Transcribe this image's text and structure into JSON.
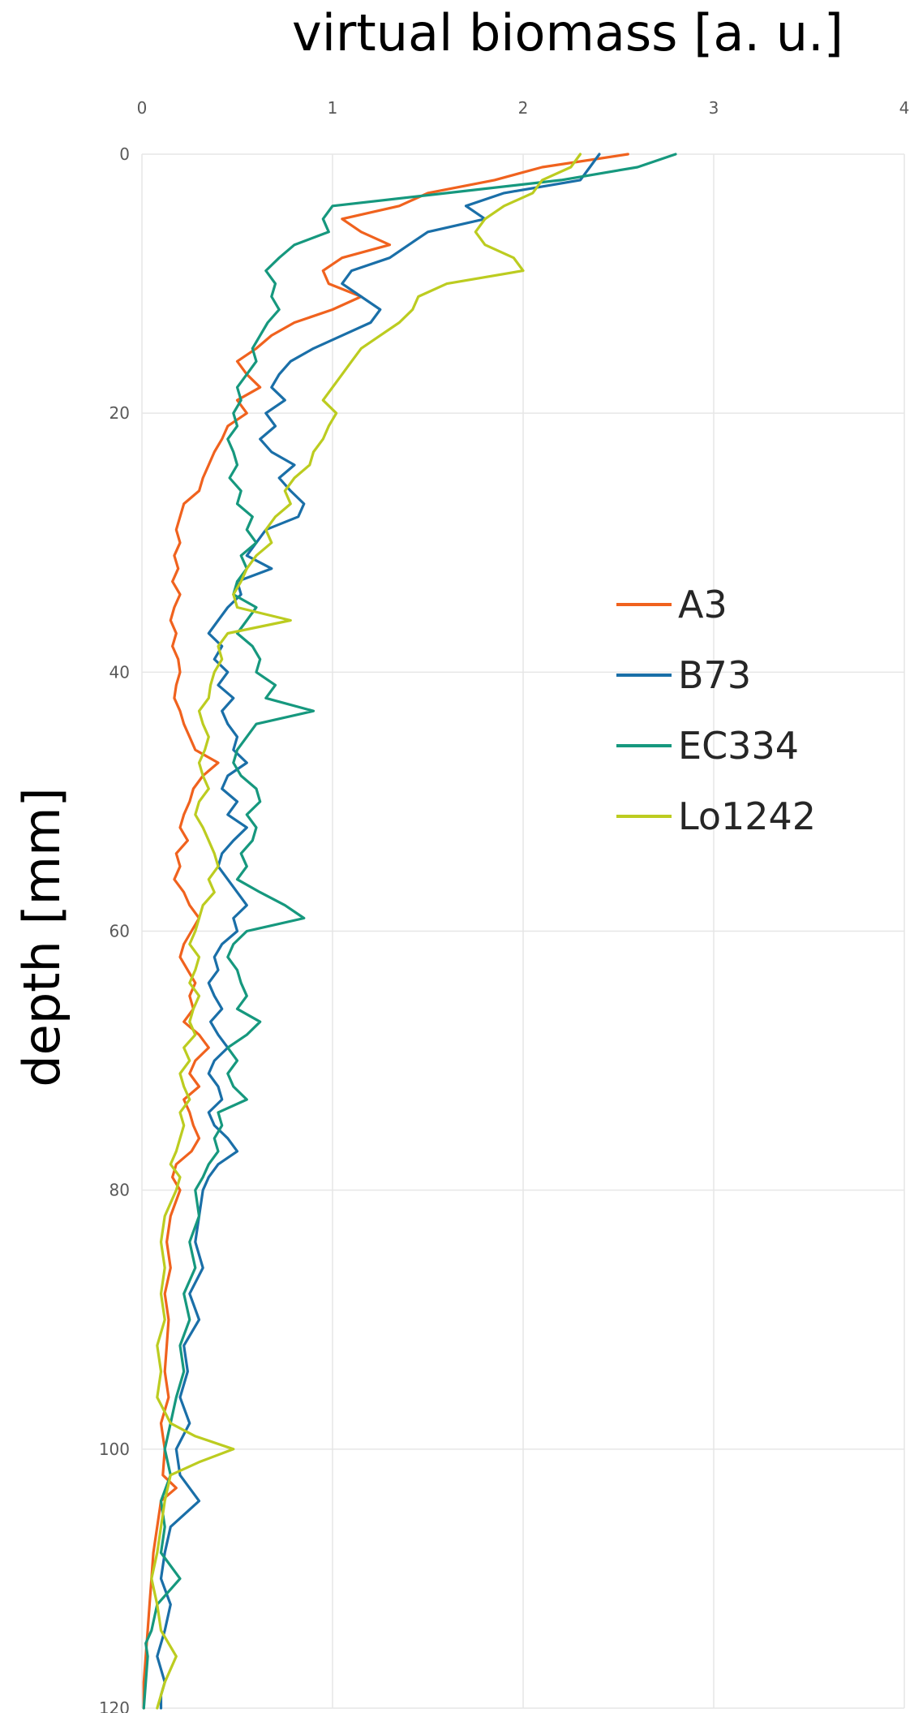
{
  "chart_data": {
    "type": "line",
    "orientation": "depth-profile",
    "xlabel": "virtual biomass [a. u.]",
    "ylabel": "depth [mm]",
    "xlim": [
      0,
      4
    ],
    "ylim": [
      0,
      120
    ],
    "y_inverted": true,
    "x_axis_position": "top",
    "xticks": [
      "0",
      "1",
      "2",
      "3",
      "4"
    ],
    "yticks": [
      "0",
      "20",
      "40",
      "60",
      "80",
      "100",
      "120"
    ],
    "grid": true,
    "legend_position": "right",
    "series": [
      {
        "name": "A3",
        "color": "#f0621e",
        "depth": [
          0,
          1,
          2,
          3,
          4,
          5,
          6,
          7,
          8,
          9,
          10,
          11,
          12,
          13,
          14,
          15,
          16,
          17,
          18,
          19,
          20,
          21,
          22,
          23,
          24,
          25,
          26,
          27,
          28,
          29,
          30,
          31,
          32,
          33,
          34,
          35,
          36,
          37,
          38,
          39,
          40,
          41,
          42,
          43,
          44,
          45,
          46,
          47,
          48,
          49,
          50,
          51,
          52,
          53,
          54,
          55,
          56,
          57,
          58,
          59,
          60,
          61,
          62,
          63,
          64,
          65,
          66,
          67,
          68,
          69,
          70,
          71,
          72,
          73,
          74,
          75,
          76,
          77,
          78,
          79,
          80,
          82,
          84,
          86,
          88,
          90,
          92,
          94,
          96,
          98,
          100,
          102,
          103,
          104,
          106,
          108,
          110,
          112,
          114,
          116,
          118,
          120
        ],
        "values": [
          2.55,
          2.1,
          1.85,
          1.5,
          1.35,
          1.05,
          1.15,
          1.3,
          1.05,
          0.95,
          0.98,
          1.15,
          1.0,
          0.8,
          0.68,
          0.6,
          0.5,
          0.55,
          0.62,
          0.5,
          0.55,
          0.45,
          0.42,
          0.38,
          0.35,
          0.32,
          0.3,
          0.22,
          0.2,
          0.18,
          0.2,
          0.17,
          0.19,
          0.16,
          0.2,
          0.17,
          0.15,
          0.18,
          0.16,
          0.19,
          0.2,
          0.18,
          0.17,
          0.2,
          0.22,
          0.25,
          0.28,
          0.4,
          0.32,
          0.27,
          0.25,
          0.22,
          0.2,
          0.24,
          0.18,
          0.2,
          0.17,
          0.22,
          0.25,
          0.3,
          0.26,
          0.22,
          0.2,
          0.24,
          0.28,
          0.25,
          0.27,
          0.22,
          0.3,
          0.35,
          0.28,
          0.25,
          0.3,
          0.22,
          0.25,
          0.27,
          0.3,
          0.26,
          0.18,
          0.16,
          0.2,
          0.15,
          0.13,
          0.15,
          0.12,
          0.14,
          0.13,
          0.12,
          0.14,
          0.1,
          0.12,
          0.11,
          0.18,
          0.1,
          0.08,
          0.06,
          0.05,
          0.04,
          0.03,
          0.02,
          0.01,
          0.01
        ]
      },
      {
        "name": "B73",
        "color": "#1a6fa8",
        "depth": [
          0,
          1,
          2,
          3,
          4,
          5,
          6,
          7,
          8,
          9,
          10,
          11,
          12,
          13,
          14,
          15,
          16,
          17,
          18,
          19,
          20,
          21,
          22,
          23,
          24,
          25,
          26,
          27,
          28,
          29,
          30,
          31,
          32,
          33,
          34,
          35,
          36,
          37,
          38,
          39,
          40,
          41,
          42,
          43,
          44,
          45,
          46,
          47,
          48,
          49,
          50,
          51,
          52,
          53,
          54,
          55,
          56,
          57,
          58,
          59,
          60,
          61,
          62,
          63,
          64,
          65,
          66,
          67,
          68,
          69,
          70,
          71,
          72,
          73,
          74,
          75,
          76,
          77,
          78,
          79,
          80,
          82,
          84,
          86,
          88,
          90,
          92,
          94,
          96,
          98,
          100,
          102,
          104,
          106,
          108,
          110,
          112,
          114,
          116,
          118,
          119,
          120
        ],
        "values": [
          2.4,
          2.35,
          2.3,
          1.9,
          1.7,
          1.8,
          1.5,
          1.4,
          1.3,
          1.1,
          1.05,
          1.15,
          1.25,
          1.2,
          1.05,
          0.9,
          0.78,
          0.72,
          0.68,
          0.75,
          0.65,
          0.7,
          0.62,
          0.68,
          0.8,
          0.72,
          0.78,
          0.85,
          0.82,
          0.65,
          0.6,
          0.55,
          0.68,
          0.5,
          0.52,
          0.45,
          0.4,
          0.35,
          0.42,
          0.38,
          0.45,
          0.4,
          0.48,
          0.42,
          0.45,
          0.5,
          0.48,
          0.55,
          0.45,
          0.42,
          0.5,
          0.45,
          0.55,
          0.48,
          0.42,
          0.4,
          0.45,
          0.5,
          0.55,
          0.48,
          0.5,
          0.42,
          0.38,
          0.4,
          0.35,
          0.38,
          0.42,
          0.36,
          0.4,
          0.45,
          0.38,
          0.35,
          0.4,
          0.42,
          0.35,
          0.38,
          0.45,
          0.5,
          0.4,
          0.35,
          0.32,
          0.3,
          0.28,
          0.32,
          0.25,
          0.3,
          0.22,
          0.24,
          0.2,
          0.25,
          0.18,
          0.2,
          0.3,
          0.15,
          0.12,
          0.1,
          0.15,
          0.12,
          0.08,
          0.12,
          0.1,
          0.1
        ]
      },
      {
        "name": "EC334",
        "color": "#16987e",
        "depth": [
          0,
          1,
          2,
          3,
          4,
          5,
          6,
          7,
          8,
          9,
          10,
          11,
          12,
          13,
          14,
          15,
          16,
          17,
          18,
          19,
          20,
          21,
          22,
          23,
          24,
          25,
          26,
          27,
          28,
          29,
          30,
          31,
          32,
          33,
          34,
          35,
          36,
          37,
          38,
          39,
          40,
          41,
          42,
          43,
          44,
          45,
          46,
          47,
          48,
          49,
          50,
          51,
          52,
          53,
          54,
          55,
          56,
          57,
          58,
          59,
          60,
          61,
          62,
          63,
          64,
          65,
          66,
          67,
          68,
          69,
          70,
          71,
          72,
          73,
          74,
          75,
          76,
          77,
          78,
          79,
          80,
          82,
          84,
          86,
          88,
          90,
          92,
          94,
          96,
          98,
          100,
          102,
          104,
          106,
          108,
          110,
          112,
          114,
          115,
          116,
          118,
          120
        ],
        "values": [
          2.8,
          2.6,
          2.2,
          1.6,
          1.0,
          0.95,
          0.98,
          0.8,
          0.72,
          0.65,
          0.7,
          0.68,
          0.72,
          0.66,
          0.62,
          0.58,
          0.6,
          0.55,
          0.5,
          0.52,
          0.48,
          0.5,
          0.45,
          0.48,
          0.5,
          0.46,
          0.52,
          0.5,
          0.58,
          0.55,
          0.6,
          0.52,
          0.55,
          0.5,
          0.48,
          0.6,
          0.55,
          0.5,
          0.58,
          0.62,
          0.6,
          0.7,
          0.65,
          0.9,
          0.6,
          0.55,
          0.5,
          0.48,
          0.52,
          0.6,
          0.62,
          0.55,
          0.6,
          0.58,
          0.52,
          0.55,
          0.5,
          0.62,
          0.75,
          0.85,
          0.55,
          0.48,
          0.45,
          0.5,
          0.52,
          0.55,
          0.5,
          0.62,
          0.55,
          0.45,
          0.5,
          0.45,
          0.48,
          0.55,
          0.4,
          0.42,
          0.38,
          0.4,
          0.35,
          0.32,
          0.28,
          0.3,
          0.25,
          0.28,
          0.22,
          0.25,
          0.2,
          0.22,
          0.18,
          0.15,
          0.12,
          0.15,
          0.1,
          0.12,
          0.1,
          0.2,
          0.08,
          0.05,
          0.02,
          0.03,
          0.02,
          0.01
        ]
      },
      {
        "name": "Lo1242",
        "color": "#bccc20",
        "depth": [
          0,
          1,
          2,
          3,
          4,
          5,
          6,
          7,
          8,
          9,
          10,
          11,
          12,
          13,
          14,
          15,
          16,
          17,
          18,
          19,
          20,
          21,
          22,
          23,
          24,
          25,
          26,
          27,
          28,
          29,
          30,
          31,
          32,
          33,
          34,
          35,
          36,
          37,
          38,
          39,
          40,
          41,
          42,
          43,
          44,
          45,
          46,
          47,
          48,
          49,
          50,
          51,
          52,
          53,
          54,
          55,
          56,
          57,
          58,
          59,
          60,
          61,
          62,
          63,
          64,
          65,
          66,
          67,
          68,
          69,
          70,
          71,
          72,
          73,
          74,
          75,
          76,
          77,
          78,
          79,
          80,
          82,
          84,
          86,
          88,
          90,
          92,
          94,
          96,
          98,
          99,
          100,
          101,
          102,
          104,
          106,
          108,
          110,
          112,
          114,
          116,
          118,
          120
        ],
        "values": [
          2.3,
          2.25,
          2.1,
          2.05,
          1.9,
          1.8,
          1.75,
          1.8,
          1.95,
          2.0,
          1.6,
          1.45,
          1.42,
          1.35,
          1.25,
          1.15,
          1.1,
          1.05,
          1.0,
          0.95,
          1.02,
          0.98,
          0.95,
          0.9,
          0.88,
          0.8,
          0.75,
          0.78,
          0.7,
          0.65,
          0.68,
          0.6,
          0.55,
          0.52,
          0.48,
          0.5,
          0.78,
          0.45,
          0.4,
          0.42,
          0.38,
          0.36,
          0.35,
          0.3,
          0.32,
          0.35,
          0.33,
          0.3,
          0.32,
          0.35,
          0.3,
          0.28,
          0.32,
          0.35,
          0.38,
          0.4,
          0.35,
          0.38,
          0.32,
          0.3,
          0.28,
          0.25,
          0.3,
          0.28,
          0.25,
          0.3,
          0.27,
          0.25,
          0.28,
          0.22,
          0.25,
          0.2,
          0.22,
          0.25,
          0.2,
          0.22,
          0.2,
          0.18,
          0.15,
          0.2,
          0.18,
          0.12,
          0.1,
          0.12,
          0.1,
          0.12,
          0.08,
          0.1,
          0.08,
          0.15,
          0.28,
          0.48,
          0.3,
          0.15,
          0.12,
          0.1,
          0.08,
          0.05,
          0.08,
          0.1,
          0.18,
          0.12,
          0.08
        ]
      }
    ]
  }
}
